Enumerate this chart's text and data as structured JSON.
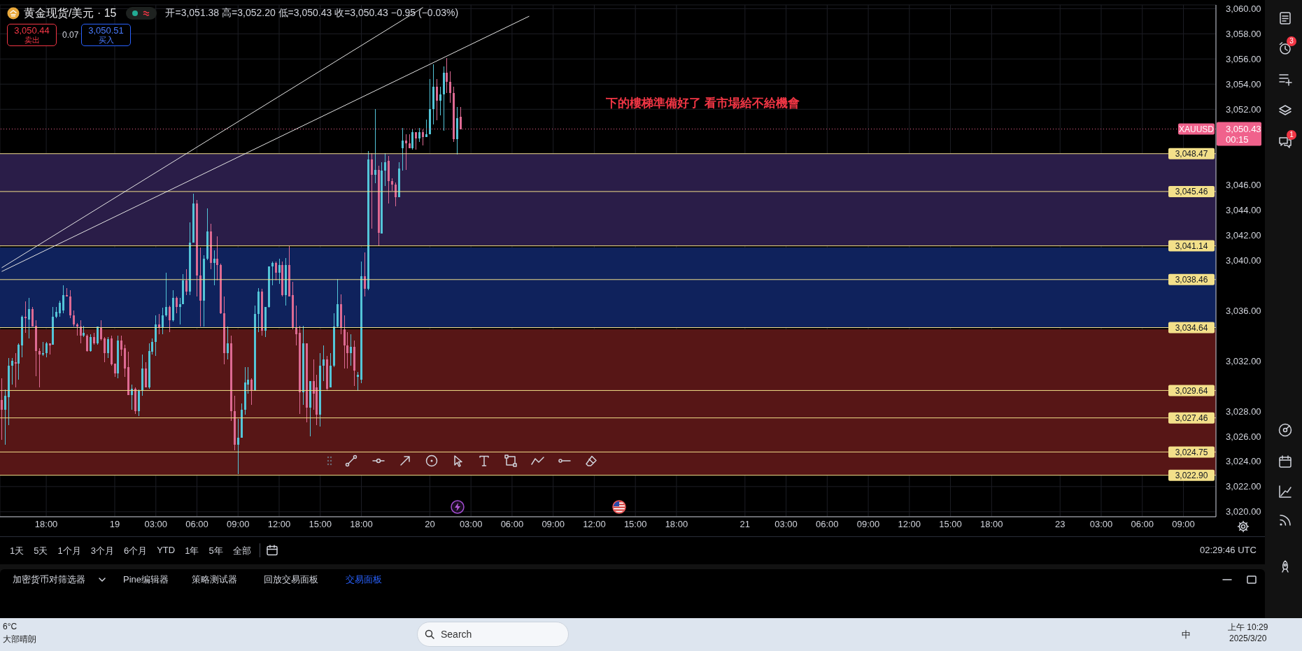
{
  "chart_data": {
    "type": "candlestick",
    "title": "黄金现货/美元 · 15",
    "subtitle": "开=3,051.38 高=3,052.20 低=3,050.43 收=3,050.43 −0.95 (−0.03%)",
    "categories": [
      null,
      null,
      null,
      null,
      null,
      null,
      null,
      null,
      null,
      null,
      null,
      null,
      null,
      "18:00",
      null,
      null,
      null,
      null,
      null,
      null,
      null,
      null,
      null,
      null,
      null,
      null,
      null,
      null,
      null,
      null,
      null,
      null,
      null,
      "19",
      null,
      null,
      null,
      null,
      null,
      null,
      null,
      null,
      null,
      null,
      null,
      "03:00",
      null,
      null,
      null,
      null,
      null,
      null,
      null,
      null,
      null,
      null,
      null,
      "06:00",
      null,
      null,
      null,
      null,
      null,
      null,
      null,
      null,
      null,
      null,
      null,
      "09:00",
      null,
      null,
      null,
      null,
      null,
      null,
      null,
      null,
      null,
      null,
      null,
      "12:00",
      null,
      null,
      null,
      null,
      null,
      null,
      null,
      null,
      null,
      null,
      null,
      "15:00",
      null,
      null,
      null,
      null,
      null,
      null,
      null,
      null,
      null,
      null,
      null,
      "18:00",
      null,
      null,
      null,
      null,
      null,
      null,
      null,
      null,
      null,
      null,
      null,
      null,
      null,
      null,
      null,
      null,
      null,
      null,
      null,
      "20",
      null,
      null,
      null,
      null,
      null,
      null,
      null,
      null,
      null,
      null,
      null,
      "03:00",
      null,
      null,
      null,
      null,
      null,
      null,
      null,
      null,
      null,
      null,
      null,
      "06:00",
      null,
      null,
      null,
      null,
      null,
      null,
      null,
      null,
      null,
      null,
      null,
      "09:00",
      null,
      null,
      null,
      null,
      null,
      null,
      null,
      null,
      null,
      null,
      null,
      "12:00",
      null,
      null,
      null,
      null,
      null,
      null,
      null,
      null,
      null,
      null,
      null,
      "15:00",
      null,
      null,
      null,
      null,
      null,
      null,
      null,
      null,
      null,
      null,
      null,
      "18:00",
      null,
      null,
      null,
      null,
      null,
      null,
      null,
      null,
      null,
      null,
      null,
      null,
      null,
      null,
      null,
      null,
      null,
      null,
      null,
      "21",
      null,
      null,
      null,
      null,
      null,
      null,
      null,
      null,
      null,
      null,
      null,
      "03:00",
      null,
      null,
      null,
      null,
      null,
      null,
      null,
      null,
      null,
      null,
      null,
      "06:00",
      null,
      null,
      null,
      null,
      null,
      null,
      null,
      null,
      null,
      null,
      null,
      "09:00",
      null,
      null,
      null,
      null,
      null,
      null,
      null,
      null,
      null,
      null,
      null,
      "12:00",
      null,
      null,
      null,
      null,
      null,
      null,
      null,
      null,
      null,
      null,
      null,
      "15:00",
      null,
      null,
      null,
      null,
      null,
      null,
      null,
      null,
      null,
      null,
      null,
      "18:00",
      null,
      null,
      null,
      null,
      null,
      null,
      null,
      null,
      null,
      null,
      null,
      null,
      null,
      null,
      null,
      null,
      null,
      null,
      null,
      "23",
      null,
      null,
      null,
      null,
      null,
      null,
      null,
      null,
      null,
      null,
      null,
      "03:00",
      null,
      null,
      null,
      null,
      null,
      null,
      null,
      null,
      null,
      null,
      null,
      "06:00",
      null,
      null,
      null,
      null,
      null,
      null,
      null,
      null,
      null,
      null,
      null,
      "09:00",
      null,
      null,
      null,
      null,
      null,
      null,
      null,
      null,
      null
    ],
    "ohlc": [
      [
        3028.9,
        3030.6,
        3025.7,
        3028.1
      ],
      [
        3028.1,
        3029.7,
        3025.3,
        3029.2
      ],
      [
        3029.1,
        3032.2,
        3026.9,
        3031.6
      ],
      [
        3031.6,
        3032.2,
        3030.1,
        3032.0
      ],
      [
        3031.9,
        3032.6,
        3029.9,
        3031.8
      ],
      [
        3031.8,
        3033.4,
        3030.5,
        3033.3
      ],
      [
        3033.2,
        3035.6,
        3032.3,
        3035.5
      ],
      [
        3035.5,
        3036.7,
        3034.2,
        3035.4
      ],
      [
        3035.3,
        3037.0,
        3033.8,
        3036.1
      ],
      [
        3036.1,
        3036.3,
        3034.7,
        3034.7
      ],
      [
        3034.8,
        3035.2,
        3030.8,
        3032.8
      ],
      [
        3032.8,
        3033.0,
        3029.9,
        3032.5
      ],
      [
        3032.5,
        3033.5,
        3032.4,
        3032.6
      ],
      [
        3032.6,
        3033.5,
        3032.3,
        3033.4
      ],
      [
        3033.4,
        3033.4,
        3032.5,
        3033.2
      ],
      [
        3033.3,
        3036.3,
        3033.3,
        3035.5
      ],
      [
        3035.5,
        3036.3,
        3035.4,
        3035.9
      ],
      [
        3035.8,
        3036.8,
        3035.5,
        3036.6
      ],
      [
        3036.0,
        3038.0,
        3035.8,
        3037.2
      ],
      [
        3037.2,
        3037.8,
        3037.1,
        3037.1
      ],
      [
        3037.1,
        3037.6,
        3035.4,
        3035.6
      ],
      [
        3035.6,
        3036.0,
        3034.7,
        3034.9
      ],
      [
        3034.9,
        3035.0,
        3034.0,
        3034.7
      ],
      [
        3034.7,
        3035.2,
        3033.4,
        3034.0
      ],
      [
        3034.0,
        3034.8,
        3033.9,
        3034.2
      ],
      [
        3034.0,
        3034.1,
        3032.7,
        3032.8
      ],
      [
        3032.8,
        3034.1,
        3032.7,
        3033.9
      ],
      [
        3033.9,
        3034.2,
        3033.3,
        3033.4
      ],
      [
        3033.4,
        3034.7,
        3033.3,
        3034.7
      ],
      [
        3034.6,
        3035.2,
        3033.6,
        3033.7
      ],
      [
        3033.8,
        3033.9,
        3031.9,
        3032.6
      ],
      [
        3032.6,
        3033.9,
        3032.2,
        3033.7
      ],
      [
        3033.8,
        3034.0,
        3031.6,
        3031.7
      ],
      [
        3031.8,
        3031.8,
        3030.7,
        3031.0
      ],
      [
        3031.0,
        3034.0,
        3030.6,
        3033.6
      ],
      [
        3033.6,
        3034.0,
        3032.4,
        3032.9
      ],
      [
        3033.0,
        3033.3,
        3030.7,
        3031.4
      ],
      [
        3031.5,
        3032.7,
        3029.3,
        3029.3
      ],
      [
        3029.3,
        3030.1,
        3028.1,
        3029.8
      ],
      [
        3029.8,
        3029.9,
        3027.8,
        3028.0
      ],
      [
        3028.0,
        3029.7,
        3027.6,
        3029.6
      ],
      [
        3029.6,
        3032.5,
        3029.2,
        3031.4
      ],
      [
        3031.4,
        3031.9,
        3029.9,
        3029.9
      ],
      [
        3029.9,
        3033.4,
        3029.8,
        3032.8
      ],
      [
        3032.7,
        3033.8,
        3032.5,
        3033.5
      ],
      [
        3033.5,
        3035.6,
        3032.4,
        3034.9
      ],
      [
        3034.9,
        3035.7,
        3034.1,
        3034.6
      ],
      [
        3034.6,
        3036.2,
        3034.1,
        3035.6
      ],
      [
        3035.6,
        3039.0,
        3035.5,
        3036.3
      ],
      [
        3036.3,
        3036.4,
        3034.3,
        3035.2
      ],
      [
        3035.2,
        3037.6,
        3035.1,
        3037.0
      ],
      [
        3037.0,
        3037.1,
        3035.8,
        3036.3
      ],
      [
        3036.3,
        3037.0,
        3034.9,
        3036.5
      ],
      [
        3036.5,
        3038.9,
        3036.5,
        3038.4
      ],
      [
        3038.4,
        3039.3,
        3037.2,
        3037.5
      ],
      [
        3037.5,
        3043.0,
        3037.2,
        3041.4
      ],
      [
        3041.4,
        3045.3,
        3041.4,
        3044.5
      ],
      [
        3044.5,
        3044.8,
        3037.1,
        3038.8
      ],
      [
        3038.8,
        3041.0,
        3034.7,
        3036.8
      ],
      [
        3036.8,
        3040.4,
        3034.7,
        3040.1
      ],
      [
        3040.1,
        3044.1,
        3040.0,
        3042.3
      ],
      [
        3042.3,
        3042.9,
        3039.3,
        3039.8
      ],
      [
        3039.8,
        3040.8,
        3038.0,
        3040.1
      ],
      [
        3040.1,
        3041.9,
        3038.4,
        3039.6
      ],
      [
        3039.6,
        3039.7,
        3035.7,
        3035.8
      ],
      [
        3035.8,
        3037.1,
        3031.7,
        3032.6
      ],
      [
        3032.6,
        3034.7,
        3032.1,
        3033.4
      ],
      [
        3033.4,
        3034.0,
        3027.2,
        3028.0
      ],
      [
        3028.0,
        3029.2,
        3024.9,
        3025.3
      ],
      [
        3025.3,
        3027.4,
        3023.0,
        3025.9
      ],
      [
        3025.9,
        3028.6,
        3025.9,
        3028.1
      ],
      [
        3028.1,
        3031.5,
        3027.7,
        3030.3
      ],
      [
        3030.1,
        3031.5,
        3029.4,
        3030.5
      ],
      [
        3030.5,
        3030.6,
        3028.5,
        3029.6
      ],
      [
        3029.6,
        3036.4,
        3029.6,
        3035.7
      ],
      [
        3035.7,
        3037.8,
        3034.3,
        3037.5
      ],
      [
        3037.5,
        3037.7,
        3034.0,
        3034.4
      ],
      [
        3034.4,
        3036.3,
        3033.9,
        3036.3
      ],
      [
        3036.3,
        3039.5,
        3036.2,
        3039.5
      ],
      [
        3039.5,
        3039.9,
        3038.0,
        3039.8
      ],
      [
        3039.8,
        3039.9,
        3038.4,
        3039.0
      ],
      [
        3039.0,
        3040.1,
        3038.1,
        3039.6
      ],
      [
        3039.6,
        3039.9,
        3037.1,
        3037.2
      ],
      [
        3037.2,
        3040.2,
        3036.4,
        3039.6
      ],
      [
        3039.6,
        3041.1,
        3037.1,
        3037.1
      ],
      [
        3037.2,
        3038.3,
        3034.5,
        3034.6
      ],
      [
        3034.6,
        3036.4,
        3033.2,
        3034.1
      ],
      [
        3034.2,
        3034.8,
        3027.8,
        3029.5
      ],
      [
        3029.5,
        3034.8,
        3028.5,
        3033.4
      ],
      [
        3033.4,
        3033.4,
        3027.1,
        3028.3
      ],
      [
        3028.3,
        3030.4,
        3026.0,
        3030.4
      ],
      [
        3030.4,
        3032.1,
        3028.1,
        3029.4
      ],
      [
        3029.9,
        3030.9,
        3026.9,
        3027.7
      ],
      [
        3027.7,
        3032.6,
        3026.8,
        3031.6
      ],
      [
        3031.6,
        3033.2,
        3030.4,
        3032.1
      ],
      [
        3032.1,
        3032.4,
        3029.6,
        3029.8
      ],
      [
        3029.9,
        3032.6,
        3029.9,
        3031.6
      ],
      [
        3031.6,
        3035.8,
        3031.5,
        3034.7
      ],
      [
        3034.7,
        3038.5,
        3034.6,
        3036.5
      ],
      [
        3036.5,
        3037.3,
        3034.1,
        3034.6
      ],
      [
        3034.5,
        3035.6,
        3031.4,
        3033.2
      ],
      [
        3033.2,
        3034.3,
        3031.4,
        3032.6
      ],
      [
        3032.6,
        3034.1,
        3031.6,
        3033.1
      ],
      [
        3033.1,
        3033.6,
        3030.0,
        3031.2
      ],
      [
        3030.7,
        3031.1,
        3029.6,
        3030.9
      ],
      [
        3030.5,
        3039.9,
        3030.2,
        3038.7
      ],
      [
        3038.7,
        3040.6,
        3037.1,
        3037.7
      ],
      [
        3037.7,
        3048.7,
        3037.6,
        3048.0
      ],
      [
        3048.0,
        3048.5,
        3042.5,
        3046.8
      ],
      [
        3046.8,
        3052.0,
        3046.1,
        3047.2
      ],
      [
        3047.2,
        3047.5,
        3041.1,
        3042.2
      ],
      [
        3042.1,
        3047.8,
        3042.1,
        3047.1
      ],
      [
        3047.1,
        3048.5,
        3045.9,
        3047.8
      ],
      [
        3047.9,
        3048.3,
        3044.5,
        3046.3
      ],
      [
        3046.3,
        3046.5,
        3045.5,
        3046.0
      ],
      [
        3046.0,
        3046.2,
        3044.3,
        3045.0
      ],
      [
        3045.0,
        3047.8,
        3045.0,
        3047.3
      ],
      [
        3048.9,
        3050.5,
        3047.1,
        3049.5
      ],
      [
        3049.5,
        3050.0,
        3047.2,
        3049.3
      ],
      [
        3049.3,
        3050.0,
        3048.9,
        3048.9
      ],
      [
        3048.9,
        3050.4,
        3048.8,
        3050.2
      ],
      [
        3050.2,
        3050.2,
        3048.8,
        3049.7
      ],
      [
        3049.7,
        3050.5,
        3049.4,
        3050.2
      ],
      [
        3050.2,
        3050.4,
        3049.1,
        3049.8
      ],
      [
        3049.8,
        3051.2,
        3049.8,
        3050.0
      ],
      [
        3050.0,
        3054.4,
        3050.0,
        3052.0
      ],
      [
        3052.0,
        3055.6,
        3050.8,
        3053.8
      ],
      [
        3053.8,
        3054.4,
        3051.1,
        3052.7
      ],
      [
        3052.7,
        3053.8,
        3051.5,
        3053.2
      ],
      [
        3053.2,
        3055.4,
        3050.3,
        3054.9
      ],
      [
        3054.9,
        3056.1,
        3053.3,
        3054.2
      ],
      [
        3054.2,
        3055.0,
        3052.5,
        3053.3
      ],
      [
        3053.3,
        3053.8,
        3049.4,
        3049.6
      ],
      [
        3049.6,
        3052.2,
        3048.4,
        3051.3
      ],
      [
        3051.38,
        3052.2,
        3050.43,
        3050.43
      ],
      null,
      null,
      null,
      null,
      null,
      null,
      null,
      null,
      null,
      null,
      null,
      null,
      null,
      null,
      null,
      null,
      null,
      null,
      null,
      null,
      null,
      null,
      null,
      null,
      null,
      null,
      null,
      null,
      null,
      null,
      null,
      null,
      null,
      null,
      null,
      null,
      null,
      null,
      null,
      null,
      null,
      null,
      null,
      null,
      null,
      null,
      null,
      null,
      null,
      null,
      null,
      null,
      null,
      null,
      null,
      null,
      null,
      null,
      null,
      null,
      null,
      null,
      null,
      null,
      null,
      null,
      null,
      null,
      null,
      null,
      null,
      null,
      null,
      null,
      null,
      null,
      null,
      null,
      null,
      null,
      null,
      null,
      null,
      null,
      null,
      null,
      null,
      null,
      null,
      null,
      null,
      null,
      null,
      null,
      null,
      null,
      null,
      null,
      null,
      null,
      null,
      null,
      null,
      null,
      null,
      null,
      null,
      null,
      null,
      null,
      null,
      null,
      null,
      null,
      null,
      null,
      null,
      null,
      null,
      null,
      null,
      null,
      null,
      null,
      null,
      null,
      null,
      null,
      null,
      null,
      null,
      null,
      null,
      null,
      null,
      null,
      null,
      null,
      null,
      null,
      null,
      null,
      null,
      null,
      null,
      null,
      null,
      null,
      null,
      null,
      null,
      null,
      null,
      null,
      null,
      null,
      null,
      null,
      null,
      null,
      null,
      null,
      null,
      null,
      null,
      null,
      null,
      null,
      null,
      null,
      null,
      null,
      null,
      null,
      null,
      null,
      null,
      null,
      null,
      null,
      null,
      null,
      null,
      null,
      null,
      null,
      null,
      null,
      null,
      null,
      null,
      null,
      null,
      null,
      null,
      null,
      null,
      null,
      null,
      null,
      null,
      null,
      null,
      null,
      null,
      null,
      null,
      null,
      null,
      null,
      null,
      null,
      null,
      null,
      null,
      null,
      null,
      null,
      null,
      null
    ],
    "colors": [
      "#de6a93",
      "#53c5d8",
      "#53c5d8",
      "#53c5d8",
      "#de6a93",
      "#53c5d8",
      "#53c5d8",
      "#de6a93",
      "#53c5d8",
      "#de6a93",
      "#de6a93",
      "#de6a93",
      "#53c5d8",
      "#53c5d8",
      "#de6a93",
      "#53c5d8",
      "#53c5d8",
      "#53c5d8",
      "#53c5d8",
      "#de6a93",
      "#de6a93",
      "#de6a93",
      "#de6a93",
      "#de6a93",
      "#53c5d8",
      "#de6a93",
      "#53c5d8",
      "#de6a93",
      "#53c5d8",
      "#de6a93",
      "#de6a93",
      "#53c5d8",
      "#de6a93",
      "#de6a93",
      "#53c5d8",
      "#de6a93",
      "#de6a93",
      "#de6a93",
      "#53c5d8",
      "#de6a93",
      "#53c5d8",
      "#53c5d8",
      "#de6a93",
      "#53c5d8",
      "#53c5d8",
      "#53c5d8",
      "#de6a93",
      "#53c5d8",
      "#53c5d8",
      "#de6a93",
      "#53c5d8",
      "#de6a93",
      "#53c5d8",
      "#53c5d8",
      "#de6a93",
      "#53c5d8",
      "#53c5d8",
      "#de6a93",
      "#de6a93",
      "#53c5d8",
      "#53c5d8",
      "#de6a93",
      "#53c5d8",
      "#de6a93",
      "#de6a93",
      "#de6a93",
      "#53c5d8",
      "#de6a93",
      "#de6a93",
      "#53c5d8",
      "#53c5d8",
      "#53c5d8",
      "#53c5d8",
      "#de6a93",
      "#53c5d8",
      "#53c5d8",
      "#de6a93",
      "#53c5d8",
      "#53c5d8",
      "#53c5d8",
      "#de6a93",
      "#53c5d8",
      "#de6a93",
      "#53c5d8",
      "#de6a93",
      "#de6a93",
      "#de6a93",
      "#de6a93",
      "#53c5d8",
      "#de6a93",
      "#53c5d8",
      "#de6a93",
      "#de6a93",
      "#53c5d8",
      "#53c5d8",
      "#de6a93",
      "#53c5d8",
      "#53c5d8",
      "#53c5d8",
      "#de6a93",
      "#de6a93",
      "#de6a93",
      "#53c5d8",
      "#de6a93",
      "#53c5d8",
      "#53c5d8",
      "#de6a93",
      "#53c5d8",
      "#de6a93",
      "#53c5d8",
      "#de6a93",
      "#53c5d8",
      "#53c5d8",
      "#de6a93",
      "#de6a93",
      "#de6a93",
      "#53c5d8",
      "#53c5d8",
      "#de6a93",
      "#de6a93",
      "#53c5d8",
      "#de6a93",
      "#53c5d8",
      "#de6a93",
      "#53c5d8",
      "#53c5d8",
      "#53c5d8",
      "#de6a93",
      "#53c5d8",
      "#53c5d8",
      "#de6a93",
      "#de6a93",
      "#de6a93",
      "#53c5d8",
      "#de6a93",
      null,
      null,
      null,
      null,
      null,
      null,
      null,
      null,
      null,
      null,
      null,
      null,
      null,
      null,
      null,
      null,
      null,
      null,
      null,
      null,
      null,
      null,
      null,
      null,
      null,
      null,
      null,
      null,
      null,
      null,
      null,
      null,
      null,
      null,
      null,
      null,
      null,
      null,
      null,
      null,
      null,
      null,
      null,
      null,
      null,
      null,
      null,
      null,
      null,
      null,
      null,
      null,
      null,
      null,
      null,
      null,
      null,
      null,
      null,
      null,
      null,
      null,
      null,
      null,
      null,
      null,
      null,
      null,
      null,
      null,
      null,
      null,
      null,
      null,
      null,
      null,
      null,
      null,
      null,
      null,
      null,
      null,
      null,
      null,
      null,
      null,
      null,
      null,
      null,
      null,
      null,
      null,
      null,
      null,
      null,
      null,
      null,
      null,
      null,
      null,
      null,
      null,
      null,
      null,
      null,
      null,
      null,
      null,
      null,
      null,
      null,
      null,
      null,
      null,
      null,
      null,
      null,
      null,
      null,
      null,
      null,
      null,
      null,
      null,
      null,
      null,
      null,
      null,
      null,
      null,
      null,
      null,
      null,
      null,
      null,
      null,
      null,
      null,
      null,
      null,
      null,
      null,
      null,
      null,
      null,
      null,
      null,
      null,
      null,
      null,
      null,
      null,
      null,
      null,
      null,
      null,
      null,
      null,
      null,
      null,
      null,
      null,
      null,
      null,
      null,
      null,
      null,
      null,
      null,
      null,
      null,
      null,
      null,
      null,
      null,
      null,
      null,
      null,
      null,
      null,
      null,
      null,
      null,
      null,
      null,
      null,
      null,
      null,
      null,
      null,
      null,
      null,
      null,
      null,
      null,
      null,
      null,
      null,
      null,
      null,
      null,
      null,
      null,
      null,
      null,
      null,
      null,
      null,
      null,
      null,
      null,
      null,
      null,
      null,
      null,
      null,
      null,
      null,
      null,
      null
    ],
    "series": [
      {
        "type": "line",
        "color": "#e4e4e4",
        "values": [
          3039.4,
          null,
          null,
          null,
          null,
          null,
          null,
          null,
          null,
          null,
          null,
          null,
          null,
          null,
          null,
          null,
          null,
          null,
          null,
          null,
          null,
          null,
          null,
          null,
          null,
          null,
          null,
          null,
          null,
          null,
          null,
          null,
          null,
          null,
          null,
          null,
          null,
          null,
          null,
          null,
          null,
          null,
          null,
          null,
          null,
          null,
          null,
          null,
          null,
          null,
          null,
          null,
          null,
          null,
          null,
          null,
          null,
          null,
          null,
          null,
          null,
          null,
          null,
          null,
          null,
          null,
          null,
          null,
          null,
          null,
          null,
          null,
          null,
          null,
          null,
          null,
          null,
          null,
          null,
          null,
          null,
          null,
          null,
          null,
          null,
          null,
          null,
          null,
          null,
          null,
          null,
          null,
          null,
          null,
          null,
          null,
          null,
          null,
          null,
          null,
          null,
          null,
          null,
          null,
          null,
          null,
          null,
          null,
          null,
          null,
          null,
          null,
          null,
          null,
          null,
          null,
          null,
          null,
          null,
          null,
          null,
          null,
          null,
          3060.1,
          null,
          null,
          null,
          null,
          null,
          null,
          null,
          null,
          null,
          null,
          null,
          null,
          null,
          null,
          null,
          null,
          null,
          null,
          null,
          null,
          null,
          null,
          null,
          null,
          null,
          null,
          null,
          null,
          null,
          null,
          null,
          null,
          null,
          null,
          null,
          null,
          null,
          null,
          null,
          null,
          null,
          null,
          null,
          null,
          null,
          null,
          null,
          null,
          null,
          null,
          null,
          null,
          null,
          null,
          null,
          null,
          null,
          null,
          null,
          null,
          null,
          null,
          null,
          null,
          null,
          null,
          null,
          null,
          null,
          null,
          null,
          null,
          null,
          null,
          null,
          null,
          null,
          null,
          null,
          null,
          null,
          null,
          null,
          null,
          null,
          null,
          null,
          null,
          null,
          null,
          null,
          null,
          null,
          null,
          null,
          null,
          null,
          null,
          null,
          null,
          null,
          null,
          null,
          null,
          null,
          null,
          null,
          null,
          null,
          null,
          null,
          null,
          null,
          null,
          null,
          null,
          null,
          null,
          null,
          null,
          null,
          null,
          null,
          null,
          null,
          null,
          null,
          null,
          null,
          null,
          null,
          null,
          null,
          null,
          null,
          null,
          null,
          null,
          null,
          null,
          null,
          null,
          null,
          null,
          null,
          null,
          null,
          null,
          null,
          null,
          null,
          null,
          null,
          null,
          null,
          null,
          null,
          null,
          null,
          null,
          null,
          null,
          null,
          null,
          null,
          null,
          null,
          null,
          null,
          null,
          null,
          null,
          null,
          null,
          null,
          null,
          null,
          null,
          null,
          null,
          null,
          null,
          null,
          null,
          null,
          null,
          null,
          null,
          null,
          null,
          null,
          null,
          null,
          null,
          null,
          null,
          null,
          null,
          null,
          null,
          null,
          null,
          null,
          null,
          null,
          null,
          null,
          null,
          null,
          null,
          null,
          null,
          null,
          null,
          null,
          null,
          null,
          null,
          null,
          null,
          null,
          null,
          null,
          null,
          null,
          null,
          null,
          null,
          null,
          null,
          null
        ]
      },
      {
        "type": "line",
        "color": "#e4e4e4",
        "values": [
          3039.1,
          null,
          null,
          null,
          null,
          null,
          null,
          null,
          null,
          null,
          null,
          null,
          null,
          null,
          null,
          null,
          null,
          null,
          null,
          null,
          null,
          null,
          null,
          null,
          null,
          null,
          null,
          null,
          null,
          null,
          null,
          null,
          null,
          null,
          null,
          null,
          null,
          null,
          null,
          null,
          null,
          null,
          null,
          null,
          null,
          null,
          null,
          null,
          null,
          null,
          null,
          null,
          null,
          null,
          null,
          null,
          null,
          null,
          null,
          null,
          null,
          null,
          null,
          null,
          null,
          null,
          null,
          null,
          null,
          null,
          null,
          null,
          null,
          null,
          null,
          null,
          null,
          null,
          null,
          null,
          null,
          null,
          null,
          null,
          null,
          null,
          null,
          null,
          null,
          null,
          null,
          null,
          null,
          null,
          null,
          null,
          null,
          null,
          null,
          null,
          null,
          null,
          null,
          null,
          null,
          null,
          null,
          null,
          null,
          null,
          null,
          null,
          null,
          null,
          null,
          null,
          null,
          null,
          null,
          null,
          null,
          null,
          null,
          null,
          null,
          null,
          null,
          null,
          null,
          null,
          null,
          null,
          null,
          null,
          null,
          null,
          null,
          null,
          null,
          null,
          null,
          null,
          null,
          null,
          null,
          null,
          null,
          null,
          null,
          null,
          null,
          null,
          null,
          null,
          3059.4,
          null,
          null,
          null,
          null,
          null,
          null,
          null,
          null,
          null,
          null,
          null,
          null,
          null,
          null,
          null,
          null,
          null,
          null,
          null,
          null,
          null,
          null,
          null,
          null,
          null,
          null,
          null,
          null,
          null,
          null,
          null,
          null,
          null,
          null,
          null,
          null,
          null,
          null,
          null,
          null,
          null,
          null,
          null,
          null,
          null,
          null,
          null,
          null,
          null,
          null,
          null,
          null,
          null,
          null,
          null,
          null,
          null,
          null,
          null,
          null,
          null,
          null,
          null,
          null,
          null,
          null,
          null,
          null,
          null,
          null,
          null,
          null,
          null,
          null,
          null,
          null,
          null,
          null,
          null,
          null,
          null,
          null,
          null,
          null,
          null,
          null,
          null,
          null,
          null,
          null,
          null,
          null,
          null,
          null,
          null,
          null,
          null,
          null,
          null,
          null,
          null,
          null,
          null,
          null,
          null,
          null,
          null,
          null,
          null,
          null,
          null,
          null,
          null,
          null,
          null,
          null,
          null,
          null,
          null,
          null,
          null,
          null,
          null,
          null,
          null,
          null,
          null,
          null,
          null,
          null,
          null,
          null,
          null,
          null,
          null,
          null,
          null,
          null,
          null,
          null,
          null,
          null,
          null,
          null,
          null,
          null,
          null,
          null,
          null,
          null,
          null,
          null,
          null,
          null,
          null,
          null,
          null,
          null,
          null,
          null,
          null,
          null,
          null,
          null,
          null,
          null,
          null,
          null,
          null,
          null,
          null,
          null,
          null,
          null,
          null,
          null,
          null,
          null,
          null,
          null,
          null,
          null,
          null,
          null,
          null,
          null,
          null,
          null,
          null,
          null,
          null,
          null,
          null,
          null,
          null,
          null,
          null,
          null,
          null,
          null
        ]
      }
    ],
    "ylim": [
      3019.6,
      3060.3
    ],
    "yticks": [
      {
        "value": 3020,
        "label": "3,020.00"
      },
      {
        "value": 3022,
        "label": "3,022.00"
      },
      {
        "value": 3024,
        "label": "3,024.00"
      },
      {
        "value": 3026,
        "label": "3,026.00"
      },
      {
        "value": 3028,
        "label": "3,028.00"
      },
      {
        "value": 3032,
        "label": "3,032.00"
      },
      {
        "value": 3036,
        "label": "3,036.00"
      },
      {
        "value": 3040,
        "label": "3,040.00"
      },
      {
        "value": 3042,
        "label": "3,042.00"
      },
      {
        "value": 3044,
        "label": "3,044.00"
      },
      {
        "value": 3046,
        "label": "3,046.00"
      },
      {
        "value": 3052,
        "label": "3,052.00"
      },
      {
        "value": 3054,
        "label": "3,054.00"
      },
      {
        "value": 3056,
        "label": "3,056.00"
      },
      {
        "value": 3058,
        "label": "3,058.00"
      },
      {
        "value": 3060,
        "label": "3,060.00"
      }
    ],
    "grid": true,
    "ref_lines": [
      {
        "axis": "y",
        "value": 3050.43,
        "label": "XAUUSD",
        "color": "#f0628c",
        "line_style": "dotted"
      },
      {
        "axis": "y",
        "value": 3048.47,
        "label": "3,048.47",
        "color": "#f3e08a"
      },
      {
        "axis": "y",
        "value": 3045.46,
        "label": "3,045.46",
        "color": "#f3e08a"
      },
      {
        "axis": "y",
        "value": 3041.14,
        "label": "3,041.14",
        "color": "#f3e08a"
      },
      {
        "axis": "y",
        "value": 3038.46,
        "label": "3,038.46",
        "color": "#f3e08a"
      },
      {
        "axis": "y",
        "value": 3034.64,
        "label": "3,034.64",
        "color": "#f3e08a"
      },
      {
        "axis": "y",
        "value": 3029.64,
        "label": "3,029.64",
        "color": "#f3e08a"
      },
      {
        "axis": "y",
        "value": 3027.46,
        "label": "3,027.46",
        "color": "#f3e08a"
      },
      {
        "axis": "y",
        "value": 3024.75,
        "label": "3,024.75",
        "color": "#f3e08a"
      },
      {
        "axis": "y",
        "value": 3022.9,
        "label": "3,022.90",
        "color": "#f3e08a"
      }
    ],
    "bands": [
      {
        "axis": "y",
        "from": 3041.14,
        "to": 3048.47,
        "color": "#2a1d48"
      },
      {
        "axis": "y",
        "from": 3034.64,
        "to": 3041.0,
        "color": "#0f225c"
      },
      {
        "axis": "y",
        "from": 3022.9,
        "to": 3034.5,
        "color": "#571616"
      }
    ],
    "annotations": [
      "3,050.44",
      "卖出",
      "0.07",
      "3,050.51",
      "买入",
      "下的樓梯準備好了 看市場給不給機會",
      "3,050.43",
      "00:15",
      "3",
      "1",
      "1天",
      "5天",
      "1个月",
      "3个月",
      "6个月",
      "YTD",
      "1年",
      "5年",
      "全部",
      "02:29:46 UTC",
      "加密货币对筛选器",
      "Pine编辑器",
      "策略测试器",
      "回放交易面板",
      "交易面板",
      "6°C",
      "大部晴朗",
      "Search",
      "中",
      "上午 10:29",
      "2025/3/20"
    ]
  }
}
